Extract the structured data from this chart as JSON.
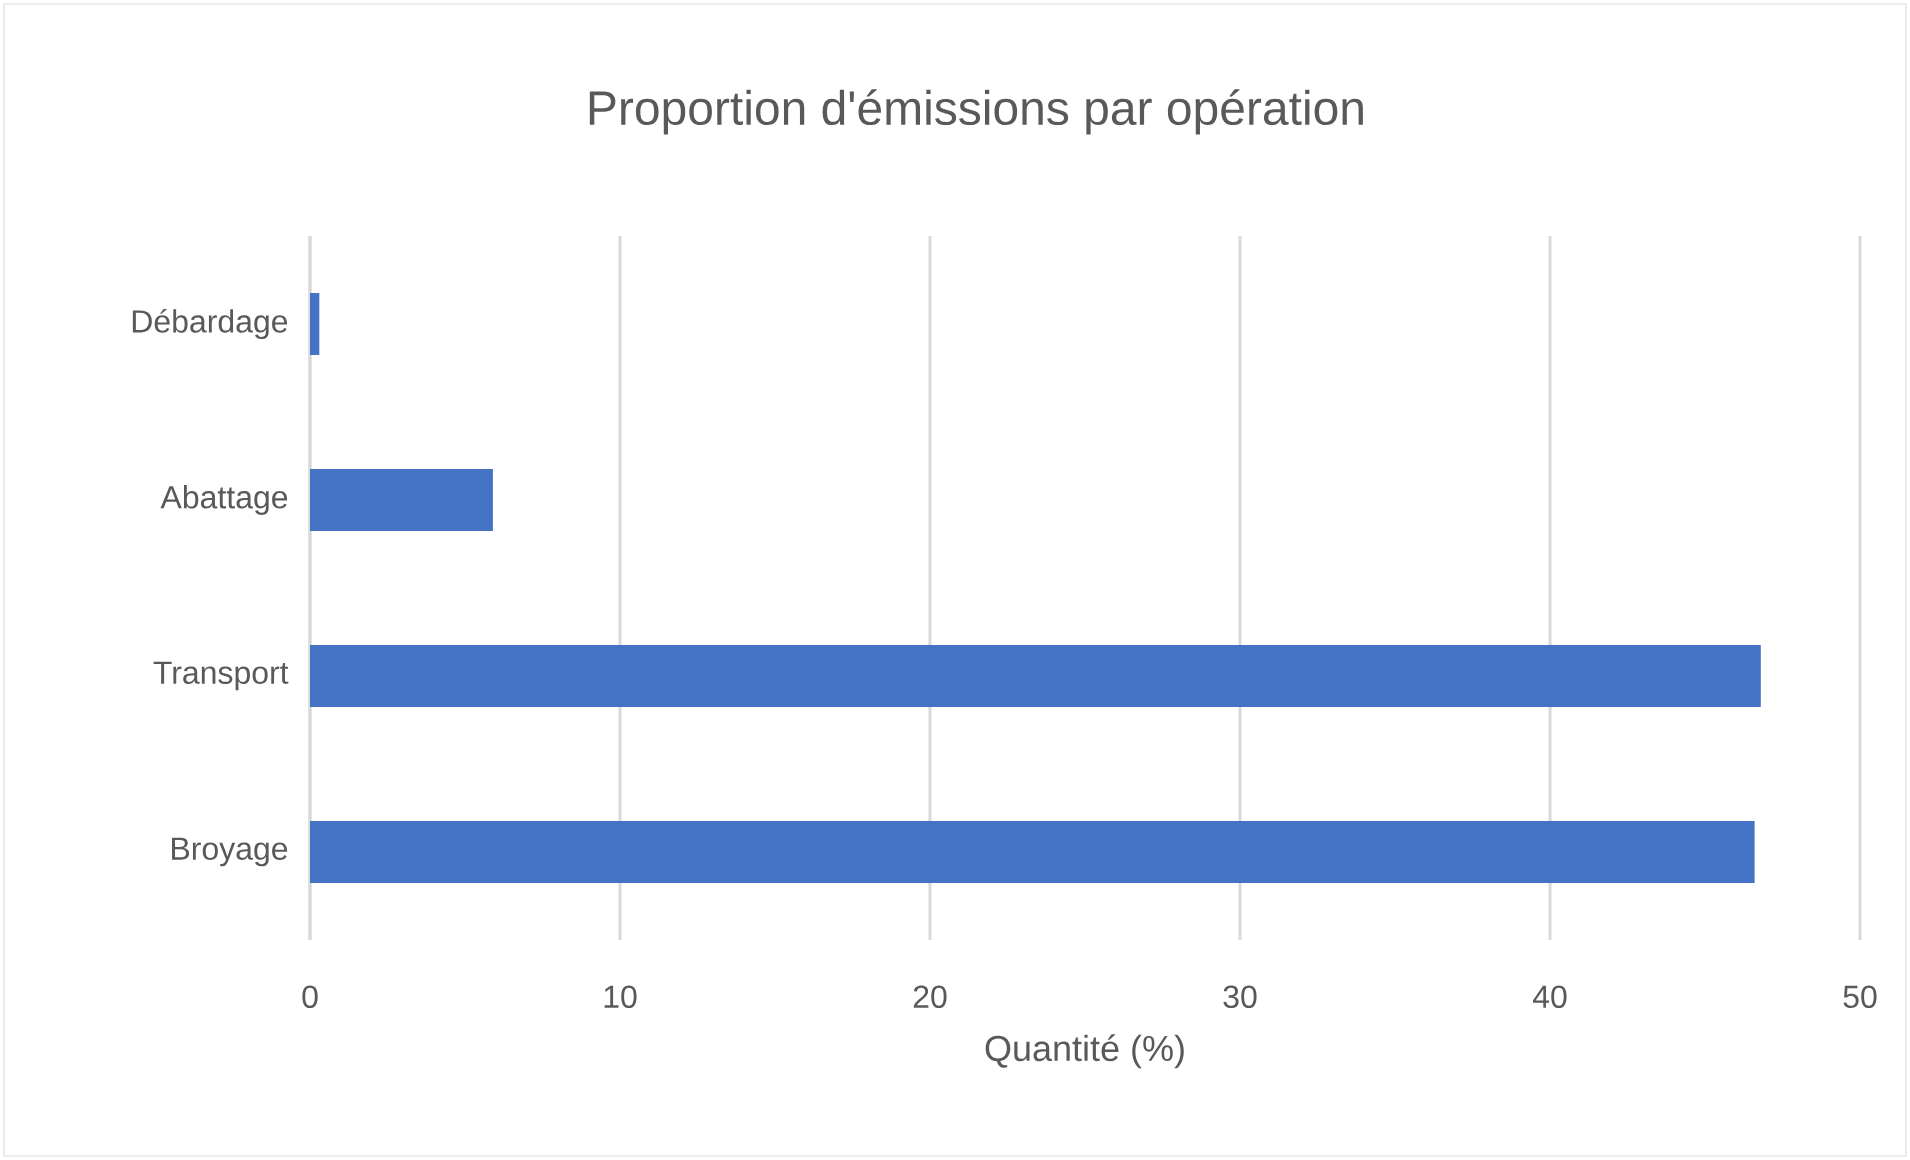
{
  "chart_data": {
    "type": "bar",
    "orientation": "horizontal",
    "title": "Proportion d'émissions par opération",
    "xlabel": "Quantité (%)",
    "categories": [
      "Débardage",
      "Abattage",
      "Transport",
      "Broyage"
    ],
    "values": [
      0.3,
      5.9,
      46.8,
      46.6
    ],
    "color": "#4472c4",
    "xlim": [
      0,
      50
    ],
    "xticks": [
      0,
      10,
      20,
      30,
      40,
      50
    ],
    "grid": "x"
  }
}
